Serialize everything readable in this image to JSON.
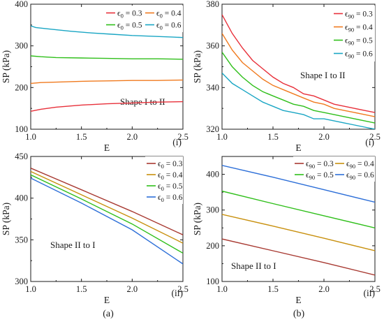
{
  "figure": {
    "caption_left": "(a)",
    "caption_right": "(b)"
  },
  "chart_data": [
    {
      "id": "a-i",
      "type": "line",
      "xlabel": "E",
      "ylabel": "SP (kPa)",
      "xlim": [
        1.0,
        2.5
      ],
      "ylim": [
        100,
        400
      ],
      "xticks": [
        1.0,
        1.5,
        2.0,
        2.5
      ],
      "xtick_labels": [
        "1.0",
        "1.5",
        "2.0",
        "2.5"
      ],
      "yticks": [
        100,
        200,
        300,
        400
      ],
      "ytick_labels": [
        "100",
        "200",
        "300",
        "400"
      ],
      "panel_tag": "(i)",
      "annotation": "Shape I to II",
      "legend_columns": 2,
      "legend_placement": "top-right",
      "series": [
        {
          "sub": "0",
          "value": "0.3",
          "color": "#e8303a",
          "x": [
            1.0,
            1.1,
            1.25,
            1.5,
            1.75,
            2.0,
            2.25,
            2.5
          ],
          "y": [
            143,
            148,
            153,
            158,
            161,
            163,
            165,
            166
          ]
        },
        {
          "sub": "0",
          "value": "0.4",
          "color": "#f07a1e",
          "x": [
            1.0,
            1.1,
            1.25,
            1.5,
            1.75,
            2.0,
            2.25,
            2.5
          ],
          "y": [
            210,
            212,
            213,
            215,
            216,
            217,
            217,
            218
          ]
        },
        {
          "sub": "0",
          "value": "0.5",
          "color": "#2fbf1a",
          "x": [
            1.0,
            1.1,
            1.25,
            1.5,
            1.75,
            2.0,
            2.25,
            2.5
          ],
          "y": [
            276,
            274,
            272,
            271,
            270,
            269,
            269,
            268
          ]
        },
        {
          "sub": "0",
          "value": "0.6",
          "color": "#1aa6c4",
          "x": [
            1.0,
            1.05,
            1.2,
            1.4,
            1.6,
            1.8,
            2.0,
            2.2,
            2.4,
            2.5
          ],
          "y": [
            348,
            344,
            340,
            335,
            331,
            328,
            325,
            323,
            321,
            320
          ]
        }
      ]
    },
    {
      "id": "b-i",
      "type": "line",
      "xlabel": "E",
      "ylabel": "SP (kPa)",
      "xlim": [
        1.0,
        2.5
      ],
      "ylim": [
        320,
        380
      ],
      "xticks": [
        1.0,
        1.5,
        2.0,
        2.5
      ],
      "xtick_labels": [
        "1.0",
        "1.5",
        "2.0",
        "2.5"
      ],
      "yticks": [
        320,
        340,
        360,
        380
      ],
      "ytick_labels": [
        "320",
        "340",
        "360",
        "380"
      ],
      "panel_tag": "(i)",
      "annotation": "Shape I to II",
      "legend_columns": 1,
      "legend_placement": "top-right",
      "series": [
        {
          "sub": "90",
          "value": "0.3",
          "color": "#e8303a",
          "x": [
            1.0,
            1.1,
            1.2,
            1.3,
            1.4,
            1.5,
            1.6,
            1.7,
            1.8,
            1.9,
            2.0,
            2.1,
            2.2,
            2.3,
            2.4,
            2.5
          ],
          "y": [
            375,
            366,
            359,
            353,
            349,
            345,
            342,
            340,
            337,
            336,
            334,
            332,
            331,
            330,
            329,
            328
          ]
        },
        {
          "sub": "90",
          "value": "0.4",
          "color": "#f07a1e",
          "x": [
            1.0,
            1.1,
            1.2,
            1.3,
            1.4,
            1.5,
            1.6,
            1.7,
            1.8,
            1.9,
            2.0,
            2.1,
            2.2,
            2.3,
            2.4,
            2.5
          ],
          "y": [
            366,
            358,
            352,
            348,
            344,
            341,
            339,
            337,
            335,
            333,
            332,
            330,
            329,
            328,
            327,
            326
          ]
        },
        {
          "sub": "90",
          "value": "0.5",
          "color": "#2fbf1a",
          "x": [
            1.0,
            1.1,
            1.2,
            1.3,
            1.4,
            1.5,
            1.6,
            1.7,
            1.8,
            1.9,
            2.0,
            2.1,
            2.2,
            2.3,
            2.4,
            2.5
          ],
          "y": [
            357,
            350,
            345,
            341,
            338,
            336,
            334,
            332,
            331,
            329,
            328,
            327,
            326,
            325,
            324,
            323
          ]
        },
        {
          "sub": "90",
          "value": "0.6",
          "color": "#1aa6c4",
          "x": [
            1.0,
            1.1,
            1.2,
            1.3,
            1.4,
            1.5,
            1.6,
            1.7,
            1.8,
            1.9,
            2.0,
            2.1,
            2.2,
            2.3,
            2.4,
            2.5
          ],
          "y": [
            347,
            342,
            339,
            336,
            333,
            331,
            329,
            328,
            327,
            325,
            325,
            324,
            323,
            322,
            321,
            320
          ]
        }
      ]
    },
    {
      "id": "a-ii",
      "type": "line",
      "xlabel": "E",
      "ylabel": "SP (kPa)",
      "xlim": [
        1.0,
        2.5
      ],
      "ylim": [
        300,
        450
      ],
      "xticks": [
        1.0,
        1.5,
        2.0,
        2.5
      ],
      "xtick_labels": [
        "1.0",
        "1.5",
        "2.0",
        "2.5"
      ],
      "yticks": [
        300,
        350,
        400,
        450
      ],
      "ytick_labels": [
        "300",
        "350",
        "400",
        "450"
      ],
      "panel_tag": "(ii)",
      "annotation": "Shape II to I",
      "legend_columns": 1,
      "legend_placement": "top-right",
      "series": [
        {
          "sub": "0",
          "value": "0.3",
          "color": "#a83a32",
          "x": [
            1.0,
            1.5,
            2.0,
            2.5
          ],
          "y": [
            436,
            410,
            384,
            356
          ]
        },
        {
          "sub": "0",
          "value": "0.4",
          "color": "#c8900e",
          "x": [
            1.0,
            1.5,
            2.0,
            2.5
          ],
          "y": [
            432,
            404,
            376,
            346
          ]
        },
        {
          "sub": "0",
          "value": "0.5",
          "color": "#2fbf1a",
          "x": [
            1.0,
            1.5,
            2.0,
            2.5
          ],
          "y": [
            428,
            399,
            369,
            334
          ]
        },
        {
          "sub": "0",
          "value": "0.6",
          "color": "#2d6fd8",
          "x": [
            1.0,
            1.5,
            2.0,
            2.5
          ],
          "y": [
            424,
            394,
            362,
            321
          ]
        }
      ]
    },
    {
      "id": "b-ii",
      "type": "line",
      "xlabel": "E",
      "ylabel": "SP (kPa)",
      "xlim": [
        1.0,
        2.5
      ],
      "ylim": [
        100,
        450
      ],
      "xticks": [
        1.0,
        1.5,
        2.0,
        2.5
      ],
      "xtick_labels": [
        "1.0",
        "1.5",
        "2.0",
        "2.5"
      ],
      "yticks": [
        100,
        200,
        300,
        400
      ],
      "ytick_labels": [
        "100",
        "200",
        "300",
        "400"
      ],
      "panel_tag": "(ii)",
      "annotation": "Shape II to I",
      "legend_columns": 2,
      "legend_placement": "top-right",
      "series": [
        {
          "sub": "90",
          "value": "0.3",
          "color": "#a83a32",
          "x": [
            1.0,
            1.5,
            2.0,
            2.5
          ],
          "y": [
            219,
            186,
            153,
            118
          ]
        },
        {
          "sub": "90",
          "value": "0.4",
          "color": "#c8900e",
          "x": [
            1.0,
            1.5,
            2.0,
            2.5
          ],
          "y": [
            288,
            255,
            221,
            186
          ]
        },
        {
          "sub": "90",
          "value": "0.5",
          "color": "#2fbf1a",
          "x": [
            1.0,
            1.5,
            2.0,
            2.5
          ],
          "y": [
            353,
            318,
            284,
            250
          ]
        },
        {
          "sub": "90",
          "value": "0.6",
          "color": "#2d6fd8",
          "x": [
            1.0,
            1.5,
            2.0,
            2.5
          ],
          "y": [
            425,
            392,
            357,
            322
          ]
        }
      ]
    }
  ]
}
